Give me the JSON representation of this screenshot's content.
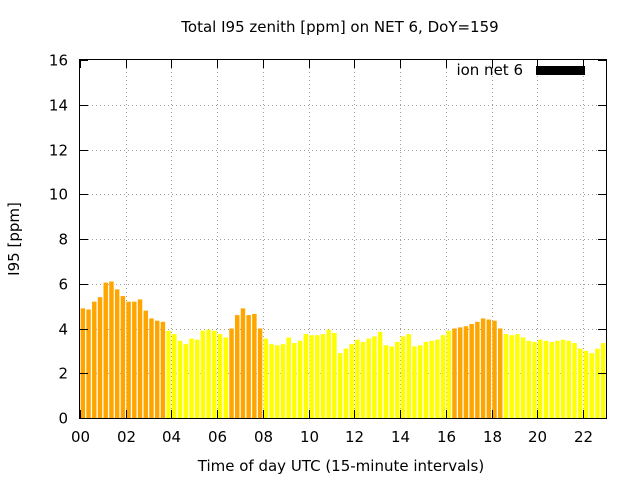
{
  "chart_data": {
    "type": "bar",
    "title": "Total I95 zenith [ppm] on NET 6, DoY=159",
    "xlabel": "Time of day UTC (15-minute intervals)",
    "ylabel": "I95 [ppm]",
    "xlim": [
      0,
      23
    ],
    "ylim": [
      0,
      16
    ],
    "x_ticks": [
      "00",
      "02",
      "04",
      "06",
      "08",
      "10",
      "12",
      "14",
      "16",
      "18",
      "20",
      "22"
    ],
    "y_ticks": [
      "0",
      "2",
      "4",
      "6",
      "8",
      "10",
      "12",
      "14",
      "16"
    ],
    "grid": true,
    "legend_position": "top-right",
    "legend": [
      {
        "label": "ion net 6",
        "color": "#000000"
      }
    ],
    "color_high": "#ffa500",
    "color_low": "#ffff00",
    "highlight_threshold": 4.0,
    "series": [
      {
        "x": [
          0.0,
          0.25,
          0.5,
          0.75,
          1.0,
          1.25,
          1.5,
          1.75,
          2.0,
          2.25,
          2.5,
          2.75,
          3.0,
          3.25,
          3.5,
          3.75,
          4.0,
          4.25,
          4.5,
          4.75,
          5.0,
          5.25,
          5.5,
          5.75,
          6.0,
          6.25,
          6.5,
          6.75,
          7.0,
          7.25,
          7.5,
          7.75,
          8.0,
          8.25,
          8.5,
          8.75,
          9.0,
          9.25,
          9.5,
          9.75,
          10.0,
          10.25,
          10.5,
          10.75,
          11.0,
          11.25,
          11.5,
          11.75,
          12.0,
          12.25,
          12.5,
          12.75,
          13.0,
          13.25,
          13.5,
          13.75,
          14.0,
          14.25,
          14.5,
          14.75,
          15.0,
          15.25,
          15.5,
          15.75,
          16.0,
          16.25,
          16.5,
          16.75,
          17.0,
          17.25,
          17.5,
          17.75,
          18.0,
          18.25,
          18.5,
          18.75,
          19.0,
          19.25,
          19.5,
          19.75,
          20.0,
          20.25,
          20.5,
          20.75,
          21.0,
          21.25,
          21.5,
          21.75,
          22.0,
          22.25,
          22.5,
          22.75
        ],
        "values": [
          4.9,
          4.85,
          5.2,
          5.4,
          6.05,
          6.1,
          5.75,
          5.45,
          5.2,
          5.2,
          5.3,
          4.8,
          4.45,
          4.35,
          4.3,
          3.9,
          3.75,
          3.45,
          3.3,
          3.55,
          3.5,
          3.9,
          3.95,
          3.9,
          3.75,
          3.6,
          4.0,
          4.6,
          4.9,
          4.6,
          4.65,
          4.0,
          3.55,
          3.3,
          3.25,
          3.3,
          3.6,
          3.35,
          3.45,
          3.75,
          3.7,
          3.7,
          3.75,
          3.95,
          3.8,
          2.9,
          3.1,
          3.3,
          3.5,
          3.4,
          3.55,
          3.65,
          3.85,
          3.25,
          3.2,
          3.4,
          3.65,
          3.75,
          3.2,
          3.25,
          3.4,
          3.45,
          3.5,
          3.7,
          3.9,
          4.0,
          4.05,
          4.1,
          4.2,
          4.3,
          4.45,
          4.4,
          4.35,
          4.0,
          3.75,
          3.7,
          3.75,
          3.6,
          3.45,
          3.4,
          3.5,
          3.45,
          3.4,
          3.45,
          3.5,
          3.45,
          3.35,
          3.1,
          3.0,
          2.9,
          3.1,
          3.35
        ]
      }
    ]
  }
}
